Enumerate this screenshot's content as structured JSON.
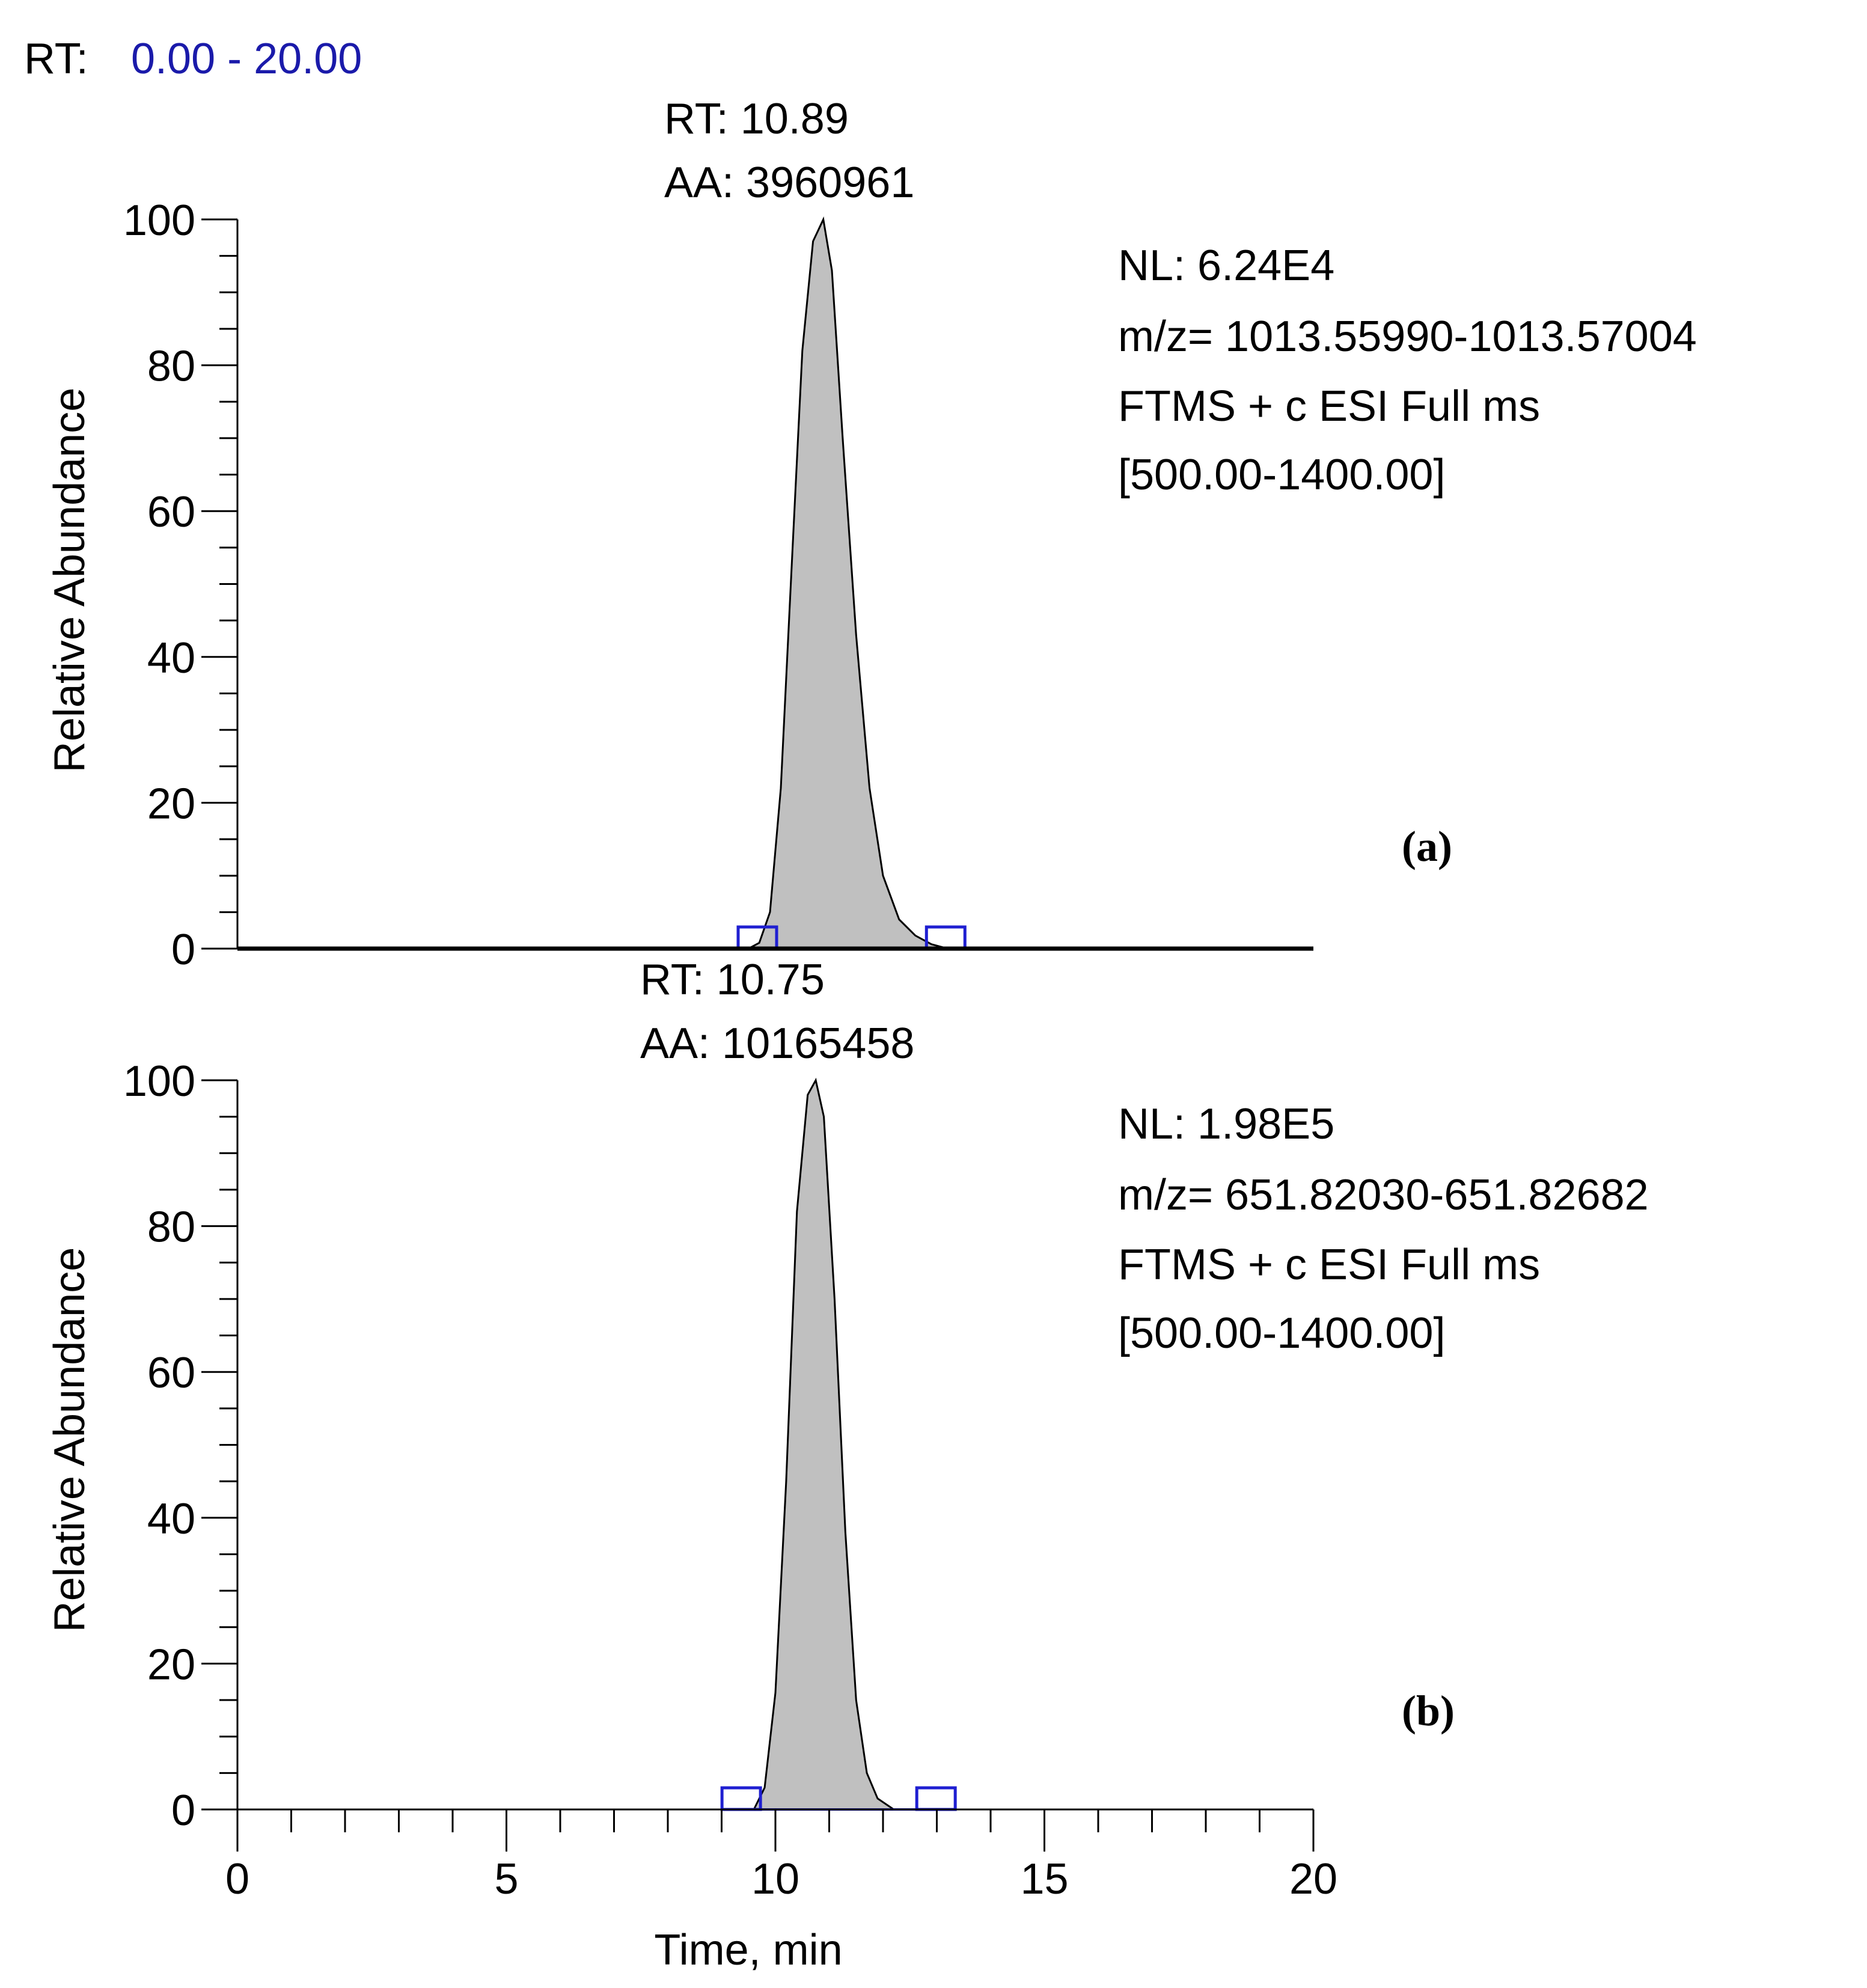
{
  "header": {
    "rt_label": "RT:",
    "rt_range": "0.00 - 20.00"
  },
  "colors": {
    "peak_fill": "#c0c0c0",
    "axis": "#000000",
    "marker": "#1f1fd1",
    "range_text": "#1a1aaa"
  },
  "chart_data": [
    {
      "type": "area",
      "panel_label": "(a)",
      "peak_rt": "RT: 10.89",
      "peak_area": "AA: 3960961",
      "info": [
        "NL: 6.24E4",
        "m/z= 1013.55990-1013.57004",
        "FTMS + c ESI Full ms",
        "[500.00-1400.00]"
      ],
      "ylabel": "Relative Abundance",
      "xlabel": "",
      "xlim": [
        0,
        20
      ],
      "ylim": [
        0,
        100
      ],
      "yticks": [
        "0",
        "20",
        "40",
        "60",
        "80",
        "100"
      ],
      "x": [
        0,
        9.5,
        9.7,
        9.9,
        10.1,
        10.3,
        10.5,
        10.7,
        10.89,
        11.05,
        11.25,
        11.5,
        11.75,
        12.0,
        12.3,
        12.6,
        12.9,
        13.2,
        20
      ],
      "values": [
        0,
        0,
        0.8,
        5,
        22,
        52,
        82,
        97,
        100,
        93,
        70,
        43,
        22,
        10,
        4,
        1.8,
        0.6,
        0,
        0
      ],
      "markers": [
        10.0,
        12.83
      ]
    },
    {
      "type": "area",
      "panel_label": "(b)",
      "peak_rt": "RT: 10.75",
      "peak_area": "AA: 10165458",
      "info": [
        "NL: 1.98E5",
        "m/z= 651.82030-651.82682",
        "FTMS + c ESI Full ms",
        "[500.00-1400.00]"
      ],
      "ylabel": "Relative Abundance",
      "xlabel": "Time, min",
      "xlim": [
        0,
        20
      ],
      "ylim": [
        0,
        100
      ],
      "yticks": [
        "0",
        "20",
        "40",
        "60",
        "80",
        "100"
      ],
      "xticks": [
        "0",
        "5",
        "10",
        "15",
        "20"
      ],
      "x": [
        0,
        9.6,
        9.8,
        10.0,
        10.2,
        10.4,
        10.6,
        10.75,
        10.9,
        11.1,
        11.3,
        11.5,
        11.7,
        11.9,
        12.2,
        20
      ],
      "values": [
        0,
        0,
        3,
        16,
        45,
        82,
        98,
        100,
        95,
        70,
        38,
        15,
        5,
        1.5,
        0,
        0
      ],
      "markers": [
        9.7,
        12.65
      ]
    }
  ]
}
